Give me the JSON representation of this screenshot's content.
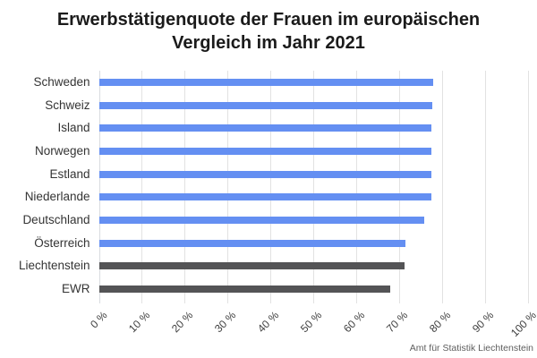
{
  "chart_data": {
    "type": "bar",
    "orientation": "horizontal",
    "title": "Erwerbstätigenquote der Frauen im europäischen Vergleich im Jahr 2021",
    "title_lines": [
      "Erwerbstätigenquote der Frauen im europäischen",
      "Vergleich im Jahr 2021"
    ],
    "categories": [
      "Schweden",
      "Schweiz",
      "Island",
      "Norwegen",
      "Estland",
      "Niederlande",
      "Deutschland",
      "Österreich",
      "Liechtenstein",
      "EWR"
    ],
    "values": [
      77.8,
      77.6,
      77.4,
      77.4,
      77.3,
      77.3,
      75.8,
      71.3,
      71.1,
      67.7
    ],
    "bar_colors": [
      "#648ff2",
      "#648ff2",
      "#648ff2",
      "#648ff2",
      "#648ff2",
      "#648ff2",
      "#648ff2",
      "#648ff2",
      "#545456",
      "#545456"
    ],
    "xlabel": "",
    "ylabel": "",
    "xlim": [
      0,
      100
    ],
    "x_tick_values": [
      0,
      10,
      20,
      30,
      40,
      50,
      60,
      70,
      80,
      90,
      100
    ],
    "x_tick_labels": [
      "0 %",
      "10 %",
      "20 %",
      "30 %",
      "40 %",
      "50 %",
      "60 %",
      "70 %",
      "80 %",
      "90 %",
      "100 %"
    ],
    "grid": true,
    "legend": false,
    "source": "Amt für Statistik Liechtenstein"
  },
  "colors": {
    "bar_blue": "#648ff2",
    "bar_gray": "#545456",
    "gridline": "#e2e2e2",
    "title_text": "#1b1b1b",
    "axis_text": "#3d3d3d",
    "source_text": "#5e5e5e",
    "background": "#ffffff"
  }
}
